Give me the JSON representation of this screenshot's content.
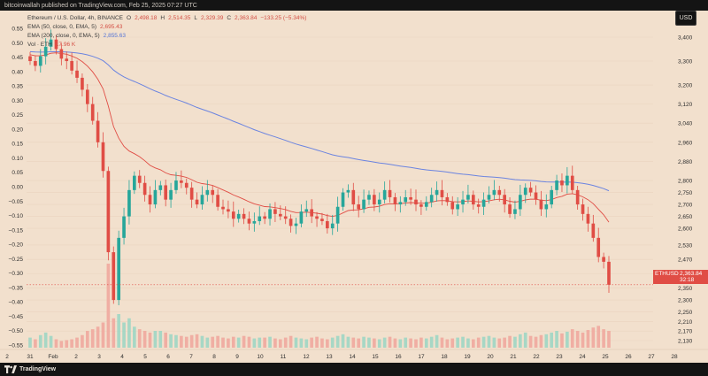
{
  "header": {
    "text": "bitcoinwallah published on TradingView.com, Feb 25, 2025 07:27 UTC"
  },
  "legend": {
    "title": "Ethereum / U.S. Dollar, 4h, BINANCE",
    "o_label": "O",
    "o": "2,498.18",
    "h_label": "H",
    "h": "2,514.35",
    "l_label": "L",
    "l": "2,329.39",
    "c_label": "C",
    "c": "2,363.84",
    "chg": "−133.25 (−5.34%)",
    "ema50_label": "EMA (50, close, 0, EMA, 5)",
    "ema50_value": "2,695.43",
    "ema200_label": "EMA (200, close, 0, EMA, 5)",
    "ema200_value": "2,855.63",
    "vol_label": "Vol · ETH",
    "vol_value": "17.96 K"
  },
  "axis": {
    "currency": "USD"
  },
  "price_tag": {
    "symbol": "ETHUSD",
    "price": "2,363.84",
    "timer": "32:18"
  },
  "footer": {
    "brand": "TradingView"
  },
  "colors": {
    "up": "#26a69a",
    "down": "#e04d45",
    "ema50": "#e04d45",
    "ema200": "#6b84e0",
    "background": "#f2e0cd"
  },
  "chart_data": {
    "type": "candlestick",
    "title": "Ethereum / U.S. Dollar, 4h, BINANCE",
    "x_tick_labels": [
      "2",
      "31",
      "Feb",
      "2",
      "3",
      "4",
      "5",
      "6",
      "7",
      "8",
      "9",
      "10",
      "11",
      "12",
      "13",
      "14",
      "15",
      "16",
      "17",
      "18",
      "19",
      "20",
      "21",
      "22",
      "23",
      "24",
      "25",
      "26",
      "27",
      "28"
    ],
    "right_axis_ticks": [
      3400,
      3300,
      3200,
      3120,
      3040,
      2960,
      2880,
      2800,
      2750,
      2700,
      2650,
      2600,
      2530,
      2470,
      2410,
      2350,
      2300,
      2250,
      2210,
      2170,
      2130
    ],
    "left_axis_ticks": [
      "0.55",
      "0.50",
      "0.45",
      "0.40",
      "0.35",
      "0.30",
      "0.25",
      "0.20",
      "0.15",
      "0.10",
      "0.05",
      "0.00",
      "−0.05",
      "−0.10",
      "−0.15",
      "−0.20",
      "−0.25",
      "−0.30",
      "−0.35",
      "−0.40",
      "−0.45",
      "−0.50",
      "−0.55"
    ],
    "last_price": 2363.84,
    "ema50_last": 2695.43,
    "ema200_last": 2855.63,
    "candles_close": [
      3300,
      3280,
      3320,
      3360,
      3390,
      3350,
      3310,
      3300,
      3260,
      3230,
      3180,
      3120,
      3050,
      2960,
      2840,
      2500,
      2300,
      2560,
      2650,
      2760,
      2820,
      2790,
      2740,
      2700,
      2760,
      2780,
      2720,
      2760,
      2800,
      2790,
      2770,
      2720,
      2700,
      2740,
      2760,
      2740,
      2690,
      2680,
      2670,
      2640,
      2660,
      2640,
      2620,
      2630,
      2650,
      2640,
      2680,
      2660,
      2650,
      2640,
      2610,
      2620,
      2670,
      2680,
      2650,
      2640,
      2630,
      2600,
      2620,
      2690,
      2750,
      2760,
      2700,
      2680,
      2720,
      2740,
      2700,
      2720,
      2760,
      2730,
      2700,
      2710,
      2730,
      2720,
      2700,
      2690,
      2710,
      2740,
      2760,
      2730,
      2710,
      2680,
      2700,
      2720,
      2740,
      2700,
      2690,
      2720,
      2740,
      2760,
      2740,
      2700,
      2660,
      2680,
      2740,
      2770,
      2750,
      2720,
      2680,
      2700,
      2760,
      2800,
      2780,
      2820,
      2760,
      2700,
      2660,
      2620,
      2560,
      2480,
      2460,
      2363.84
    ],
    "volume_relative": [
      0.12,
      0.1,
      0.15,
      0.18,
      0.14,
      0.1,
      0.08,
      0.09,
      0.1,
      0.12,
      0.15,
      0.2,
      0.22,
      0.25,
      0.3,
      1.0,
      0.35,
      0.4,
      0.3,
      0.35,
      0.25,
      0.22,
      0.2,
      0.18,
      0.2,
      0.2,
      0.18,
      0.16,
      0.15,
      0.14,
      0.13,
      0.15,
      0.16,
      0.14,
      0.12,
      0.13,
      0.14,
      0.12,
      0.11,
      0.13,
      0.12,
      0.14,
      0.13,
      0.11,
      0.12,
      0.12,
      0.13,
      0.11,
      0.1,
      0.12,
      0.14,
      0.12,
      0.11,
      0.1,
      0.12,
      0.13,
      0.11,
      0.1,
      0.12,
      0.14,
      0.16,
      0.13,
      0.12,
      0.11,
      0.13,
      0.12,
      0.11,
      0.1,
      0.12,
      0.13,
      0.11,
      0.1,
      0.12,
      0.11,
      0.1,
      0.12,
      0.11,
      0.13,
      0.15,
      0.12,
      0.1,
      0.11,
      0.12,
      0.13,
      0.11,
      0.1,
      0.12,
      0.13,
      0.14,
      0.12,
      0.11,
      0.12,
      0.14,
      0.13,
      0.16,
      0.18,
      0.14,
      0.13,
      0.15,
      0.16,
      0.18,
      0.2,
      0.17,
      0.19,
      0.22,
      0.2,
      0.18,
      0.21,
      0.24,
      0.26,
      0.22,
      0.2
    ]
  }
}
